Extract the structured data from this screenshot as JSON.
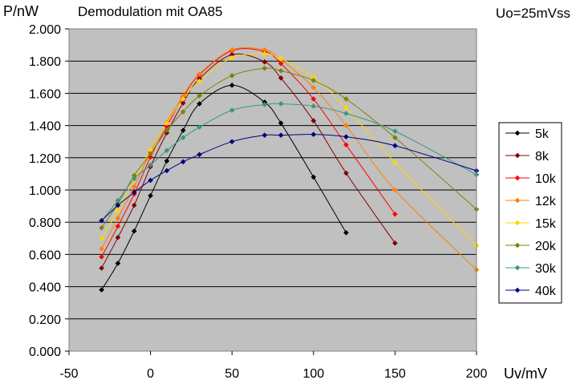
{
  "chart_data": {
    "type": "line",
    "title": "Demodulation mit OA85",
    "ylabel": "P/nW",
    "xlabel": "Uv/mV",
    "annotation": "Uo=25mVss",
    "xlim": [
      -50,
      200
    ],
    "ylim": [
      0,
      2
    ],
    "x_ticks": [
      -50,
      0,
      50,
      100,
      150,
      200
    ],
    "x_tick_labels": [
      "-50",
      "0",
      "50",
      "100",
      "150",
      "200"
    ],
    "y_ticks": [
      0,
      0.2,
      0.4,
      0.6,
      0.8,
      1.0,
      1.2,
      1.4,
      1.6,
      1.8,
      2.0
    ],
    "y_tick_labels": [
      "0.000",
      "0.200",
      "0.400",
      "0.600",
      "0.800",
      "1.000",
      "1.200",
      "1.400",
      "1.600",
      "1.800",
      "2.000"
    ],
    "grid": "horizontal",
    "plot_background": "#c0c0c0",
    "legend_position": "right",
    "series": [
      {
        "name": "5k",
        "color": "#000000",
        "marker": "diamond",
        "x": [
          -30,
          -20,
          -10,
          0,
          10,
          20,
          30,
          50,
          70,
          80,
          100,
          120
        ],
        "y": [
          0.38,
          0.545,
          0.745,
          0.965,
          1.18,
          1.37,
          1.535,
          1.65,
          1.545,
          1.415,
          1.08,
          0.735
        ]
      },
      {
        "name": "8k",
        "color": "#800000",
        "marker": "diamond",
        "x": [
          -30,
          -20,
          -10,
          0,
          10,
          20,
          30,
          50,
          70,
          80,
          100,
          120,
          150
        ],
        "y": [
          0.515,
          0.705,
          0.905,
          1.145,
          1.355,
          1.54,
          1.69,
          1.84,
          1.795,
          1.695,
          1.43,
          1.105,
          0.67
        ]
      },
      {
        "name": "10k",
        "color": "#ff0000",
        "marker": "diamond",
        "x": [
          -30,
          -20,
          -10,
          0,
          10,
          20,
          30,
          50,
          70,
          80,
          100,
          120,
          150
        ],
        "y": [
          0.585,
          0.775,
          0.975,
          1.205,
          1.395,
          1.575,
          1.715,
          1.865,
          1.86,
          1.785,
          1.565,
          1.28,
          0.85
        ]
      },
      {
        "name": "12k",
        "color": "#ff8000",
        "marker": "diamond",
        "x": [
          -30,
          -20,
          -10,
          0,
          10,
          20,
          30,
          50,
          70,
          80,
          100,
          120,
          150,
          200
        ],
        "y": [
          0.635,
          0.825,
          1.02,
          1.235,
          1.42,
          1.585,
          1.72,
          1.87,
          1.87,
          1.81,
          1.635,
          1.4,
          1.0,
          0.505
        ]
      },
      {
        "name": "15k",
        "color": "#ffd700",
        "marker": "diamond",
        "x": [
          -30,
          -20,
          -10,
          0,
          10,
          20,
          30,
          50,
          70,
          80,
          100,
          120,
          150,
          200
        ],
        "y": [
          0.7,
          0.875,
          1.065,
          1.25,
          1.415,
          1.565,
          1.675,
          1.82,
          1.845,
          1.815,
          1.7,
          1.51,
          1.17,
          0.655
        ]
      },
      {
        "name": "20k",
        "color": "#808000",
        "marker": "diamond",
        "x": [
          -30,
          -20,
          -10,
          0,
          10,
          20,
          30,
          50,
          70,
          80,
          100,
          120,
          150,
          200
        ],
        "y": [
          0.765,
          0.915,
          1.09,
          1.225,
          1.37,
          1.485,
          1.585,
          1.71,
          1.755,
          1.74,
          1.68,
          1.565,
          1.325,
          0.88
        ]
      },
      {
        "name": "30k",
        "color": "#339980",
        "marker": "diamond",
        "x": [
          -30,
          -20,
          -10,
          0,
          10,
          20,
          30,
          50,
          70,
          80,
          100,
          120,
          150,
          200
        ],
        "y": [
          0.81,
          0.935,
          1.07,
          1.155,
          1.245,
          1.325,
          1.39,
          1.495,
          1.53,
          1.535,
          1.52,
          1.475,
          1.365,
          1.095
        ]
      },
      {
        "name": "40k",
        "color": "#000080",
        "marker": "diamond",
        "x": [
          -30,
          -20,
          -10,
          0,
          10,
          20,
          30,
          50,
          70,
          80,
          100,
          120,
          150,
          200
        ],
        "y": [
          0.81,
          0.905,
          0.985,
          1.06,
          1.12,
          1.175,
          1.22,
          1.3,
          1.34,
          1.34,
          1.345,
          1.33,
          1.275,
          1.12
        ]
      }
    ]
  }
}
